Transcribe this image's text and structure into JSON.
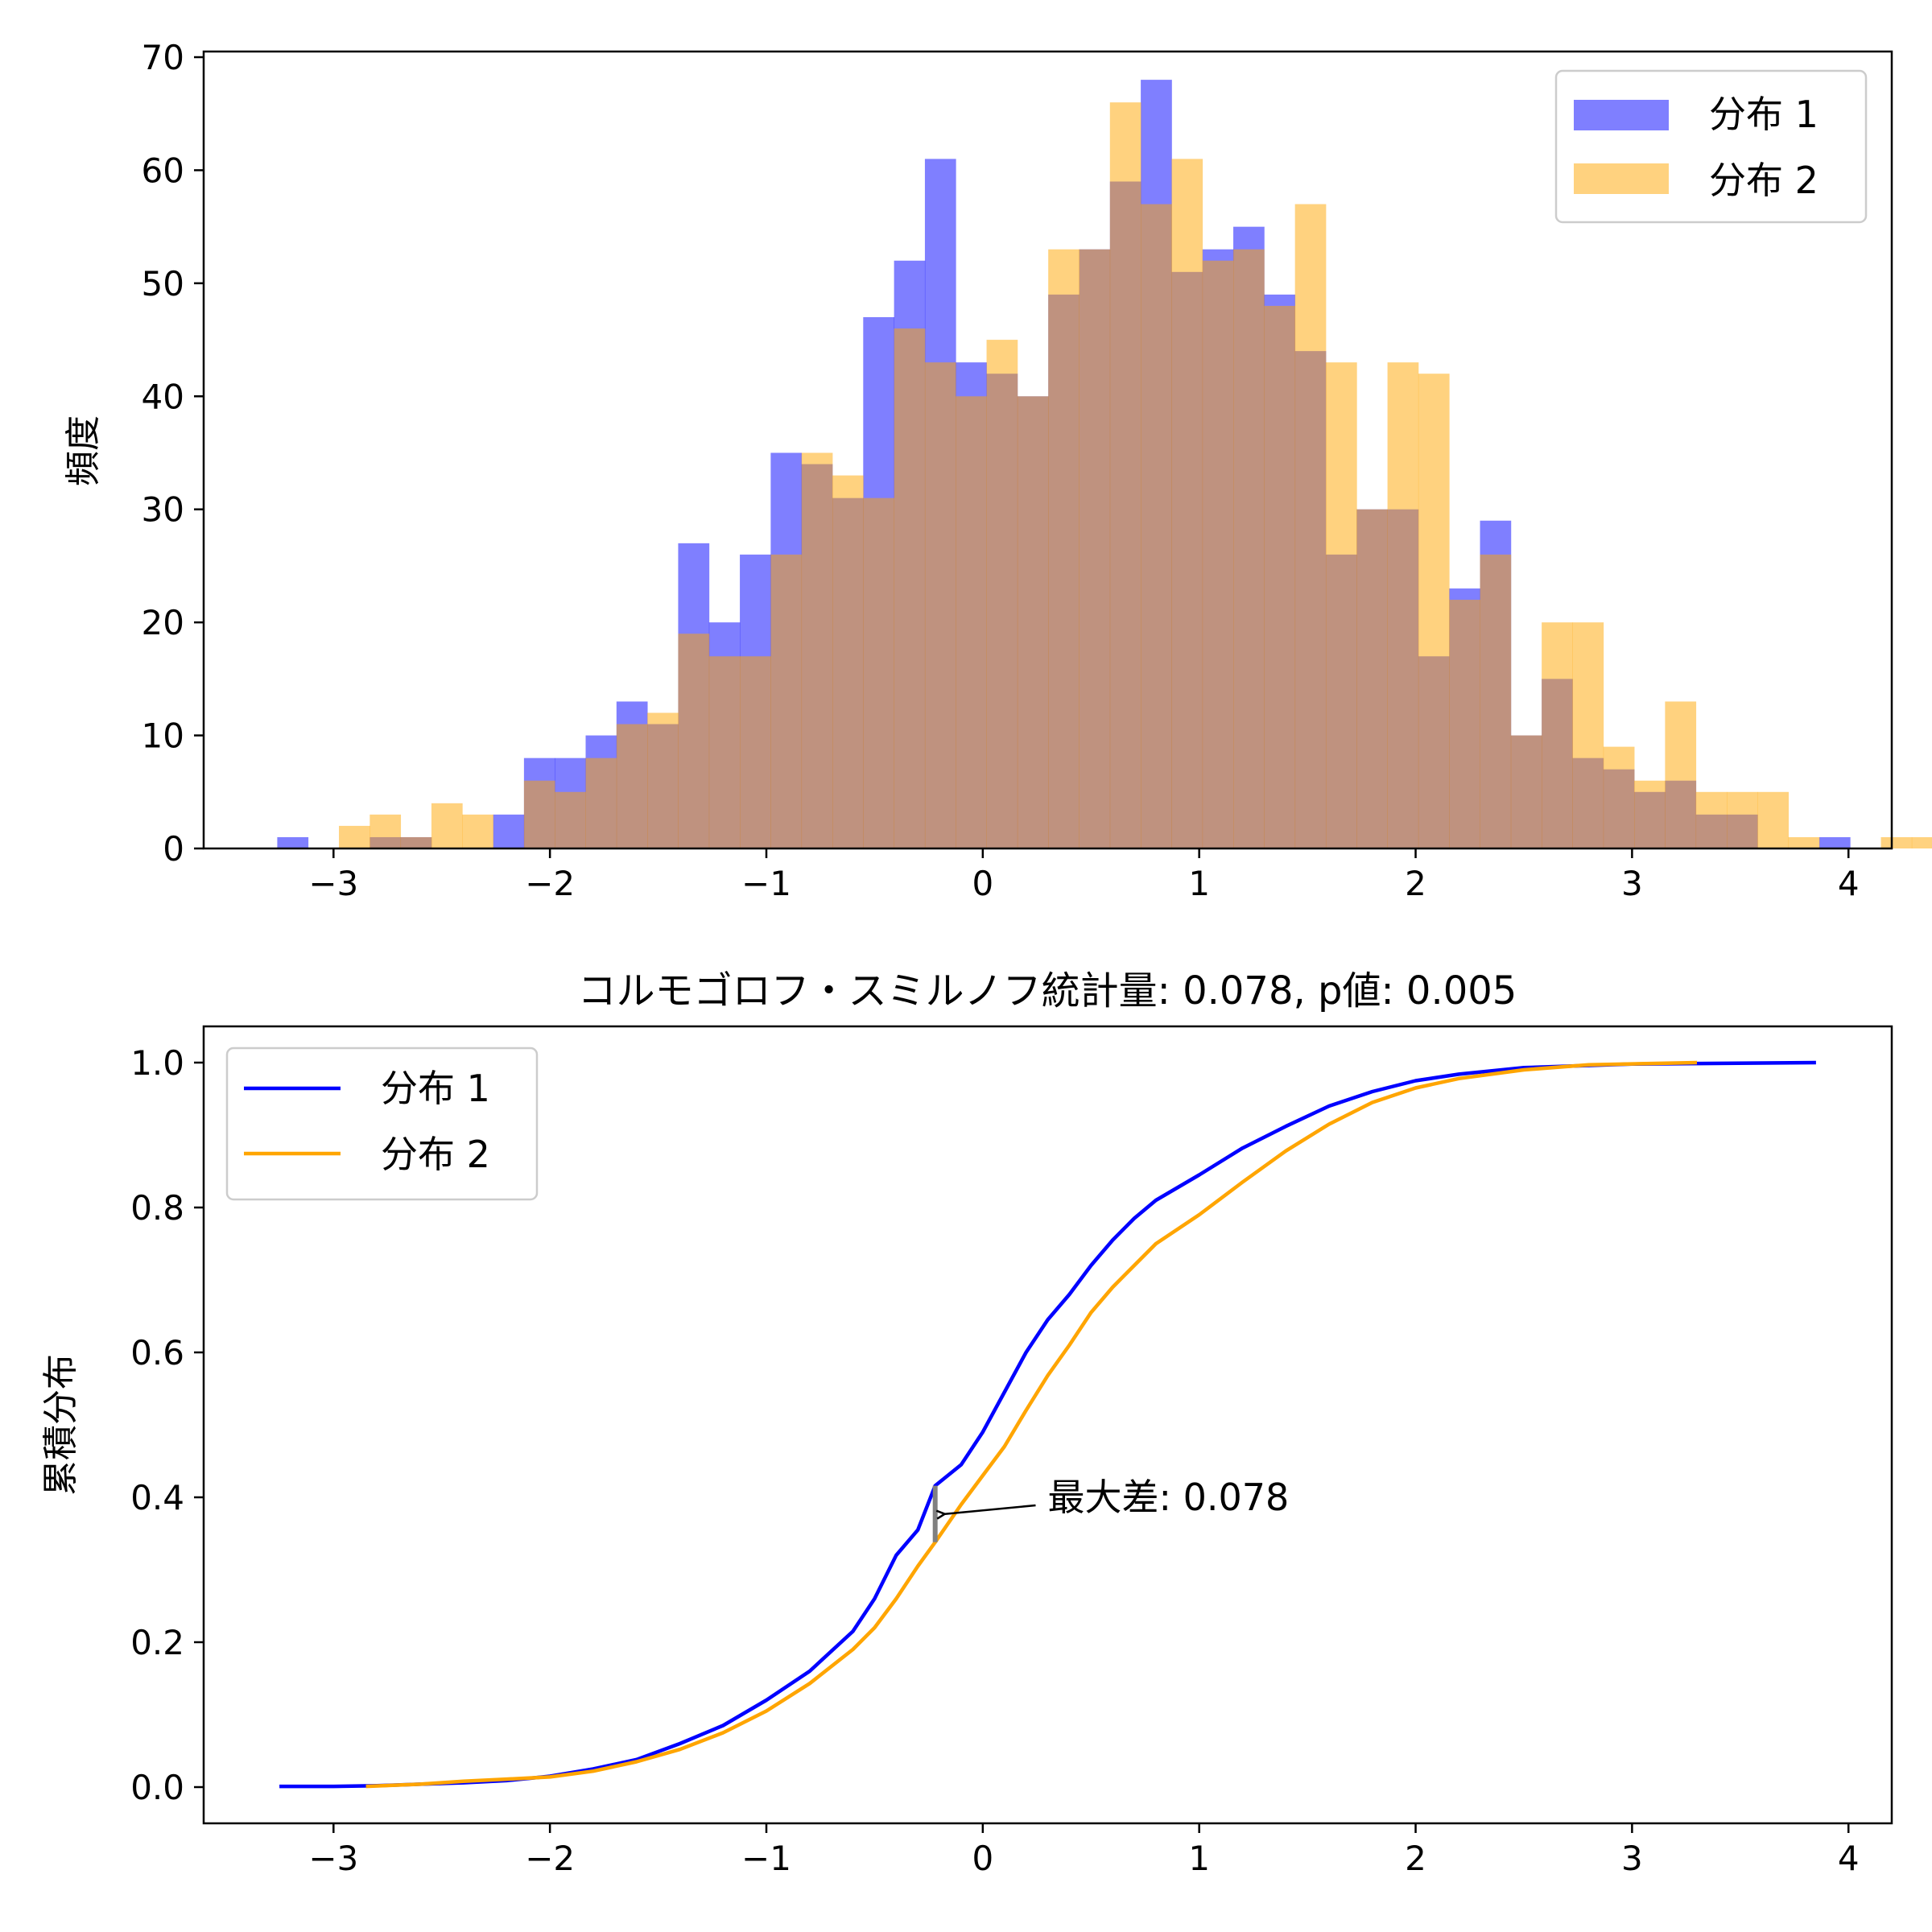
{
  "chart_data": [
    {
      "type": "bar",
      "subtype": "histogram-overlay",
      "title": "",
      "xlabel": "",
      "ylabel": "頻度",
      "xlim": [
        -3.6,
        4.2
      ],
      "ylim": [
        0,
        70.5
      ],
      "xticks": [
        -3,
        -2,
        -1,
        0,
        1,
        2,
        3,
        4
      ],
      "yticks": [
        0,
        10,
        20,
        30,
        40,
        50,
        60,
        70
      ],
      "bin_start": -3.26,
      "bin_width": 0.1425,
      "legend_position": "top-right",
      "series": [
        {
          "name": "分布 1",
          "color": "#0000ff",
          "opacity": 0.5,
          "values": [
            1,
            0,
            0,
            1,
            1,
            0,
            0,
            3,
            8,
            8,
            10,
            13,
            11,
            27,
            20,
            26,
            35,
            34,
            31,
            47,
            52,
            61,
            43,
            42,
            40,
            49,
            53,
            59,
            68,
            51,
            53,
            55,
            49,
            44,
            26,
            30,
            30,
            17,
            23,
            29,
            10,
            15,
            8,
            7,
            5,
            6,
            3,
            3,
            0,
            0,
            1,
            0,
            0,
            0,
            0,
            1
          ]
        },
        {
          "name": "分布 2",
          "color": "#ffa500",
          "opacity": 0.5,
          "values": [
            0,
            0,
            2,
            3,
            1,
            4,
            3,
            0,
            6,
            5,
            8,
            11,
            12,
            19,
            17,
            17,
            26,
            35,
            33,
            31,
            46,
            43,
            40,
            45,
            40,
            53,
            53,
            66,
            57,
            61,
            52,
            53,
            48,
            57,
            43,
            30,
            43,
            42,
            22,
            26,
            10,
            20,
            20,
            9,
            6,
            13,
            5,
            5,
            5,
            1,
            0,
            0,
            1,
            1,
            0,
            0
          ]
        }
      ]
    },
    {
      "type": "line",
      "subtype": "ecdf",
      "title": "コルモゴロフ・スミルノフ統計量: 0.078, p値: 0.005",
      "xlabel": "",
      "ylabel": "累積分布",
      "xlim": [
        -3.6,
        4.2
      ],
      "ylim": [
        -0.05,
        1.05
      ],
      "xticks": [
        -3,
        -2,
        -1,
        0,
        1,
        2,
        3,
        4
      ],
      "yticks": [
        0.0,
        0.2,
        0.4,
        0.6,
        0.8,
        1.0
      ],
      "ytick_labels": [
        "0.0",
        "0.2",
        "0.4",
        "0.6",
        "0.8",
        "1.0"
      ],
      "legend_position": "top-left",
      "series": [
        {
          "name": "分布 1",
          "color": "#0000ff",
          "points": [
            [
              -3.25,
              0.001
            ],
            [
              -3.0,
              0.001
            ],
            [
              -2.8,
              0.002
            ],
            [
              -2.6,
              0.004
            ],
            [
              -2.4,
              0.006
            ],
            [
              -2.2,
              0.009
            ],
            [
              -2.0,
              0.015
            ],
            [
              -1.8,
              0.025
            ],
            [
              -1.6,
              0.038
            ],
            [
              -1.4,
              0.06
            ],
            [
              -1.2,
              0.085
            ],
            [
              -1.0,
              0.12
            ],
            [
              -0.8,
              0.16
            ],
            [
              -0.6,
              0.215
            ],
            [
              -0.5,
              0.26
            ],
            [
              -0.4,
              0.32
            ],
            [
              -0.3,
              0.355
            ],
            [
              -0.22,
              0.416
            ],
            [
              -0.1,
              0.445
            ],
            [
              0.0,
              0.49
            ],
            [
              0.1,
              0.545
            ],
            [
              0.2,
              0.6
            ],
            [
              0.3,
              0.645
            ],
            [
              0.4,
              0.68
            ],
            [
              0.5,
              0.72
            ],
            [
              0.6,
              0.755
            ],
            [
              0.7,
              0.785
            ],
            [
              0.8,
              0.81
            ],
            [
              1.0,
              0.845
            ],
            [
              1.2,
              0.882
            ],
            [
              1.4,
              0.912
            ],
            [
              1.6,
              0.94
            ],
            [
              1.8,
              0.96
            ],
            [
              2.0,
              0.975
            ],
            [
              2.2,
              0.984
            ],
            [
              2.5,
              0.993
            ],
            [
              3.0,
              0.998
            ],
            [
              3.85,
              1.0
            ]
          ]
        },
        {
          "name": "分布 2",
          "color": "#ffa500",
          "points": [
            [
              -2.85,
              0.001
            ],
            [
              -2.6,
              0.004
            ],
            [
              -2.4,
              0.008
            ],
            [
              -2.2,
              0.011
            ],
            [
              -2.0,
              0.014
            ],
            [
              -1.8,
              0.022
            ],
            [
              -1.6,
              0.035
            ],
            [
              -1.4,
              0.052
            ],
            [
              -1.2,
              0.075
            ],
            [
              -1.0,
              0.105
            ],
            [
              -0.8,
              0.143
            ],
            [
              -0.6,
              0.19
            ],
            [
              -0.5,
              0.22
            ],
            [
              -0.4,
              0.26
            ],
            [
              -0.3,
              0.305
            ],
            [
              -0.22,
              0.338
            ],
            [
              -0.1,
              0.39
            ],
            [
              0.0,
              0.43
            ],
            [
              0.1,
              0.47
            ],
            [
              0.2,
              0.52
            ],
            [
              0.3,
              0.568
            ],
            [
              0.4,
              0.61
            ],
            [
              0.5,
              0.655
            ],
            [
              0.6,
              0.69
            ],
            [
              0.7,
              0.72
            ],
            [
              0.8,
              0.75
            ],
            [
              1.0,
              0.79
            ],
            [
              1.2,
              0.835
            ],
            [
              1.4,
              0.878
            ],
            [
              1.6,
              0.915
            ],
            [
              1.8,
              0.945
            ],
            [
              2.0,
              0.965
            ],
            [
              2.2,
              0.978
            ],
            [
              2.5,
              0.99
            ],
            [
              2.8,
              0.997
            ],
            [
              3.3,
              1.0
            ]
          ]
        }
      ],
      "annotation": {
        "text": "最大差: 0.078",
        "x": -0.22,
        "y_from": 0.338,
        "y_to": 0.416,
        "text_x": 0.3,
        "text_y": 0.4,
        "color": "#808080"
      }
    }
  ]
}
